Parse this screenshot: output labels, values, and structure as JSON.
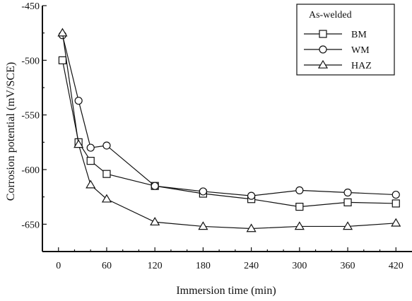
{
  "chart_data": {
    "type": "line",
    "title": "",
    "xlabel": "Immersion time (min)",
    "ylabel": "Corrosion potential (mV/SCE)",
    "xlim": [
      -20,
      440
    ],
    "ylim": [
      -675,
      -450
    ],
    "xticks": [
      0,
      60,
      120,
      180,
      240,
      300,
      360,
      420
    ],
    "xtick_labels": [
      "0",
      "60",
      "120",
      "180",
      "240",
      "300",
      "360",
      "420"
    ],
    "yticks": [
      -450,
      -500,
      -550,
      -600,
      -650
    ],
    "ytick_labels": [
      "-450",
      "-500",
      "-550",
      "-600",
      "-650"
    ],
    "legend": {
      "title": "As-welded",
      "position": "top-right"
    },
    "series": [
      {
        "name": "BM",
        "marker": "square",
        "points": [
          [
            5,
            -500
          ],
          [
            25,
            -575
          ],
          [
            40,
            -592
          ],
          [
            60,
            -604
          ],
          [
            120,
            -615
          ],
          [
            180,
            -622
          ],
          [
            240,
            -627
          ],
          [
            300,
            -634
          ],
          [
            360,
            -630
          ],
          [
            420,
            -631
          ]
        ]
      },
      {
        "name": "WM",
        "marker": "circle",
        "points": [
          [
            5,
            -477
          ],
          [
            25,
            -537
          ],
          [
            40,
            -580
          ],
          [
            60,
            -578
          ],
          [
            120,
            -615
          ],
          [
            180,
            -620
          ],
          [
            240,
            -624
          ],
          [
            300,
            -619
          ],
          [
            360,
            -621
          ],
          [
            420,
            -623
          ]
        ]
      },
      {
        "name": "HAZ",
        "marker": "triangle",
        "points": [
          [
            5,
            -475
          ],
          [
            25,
            -577
          ],
          [
            40,
            -614
          ],
          [
            60,
            -627
          ],
          [
            120,
            -648
          ],
          [
            180,
            -652
          ],
          [
            240,
            -654
          ],
          [
            300,
            -652
          ],
          [
            360,
            -652
          ],
          [
            420,
            -649
          ]
        ]
      }
    ]
  }
}
